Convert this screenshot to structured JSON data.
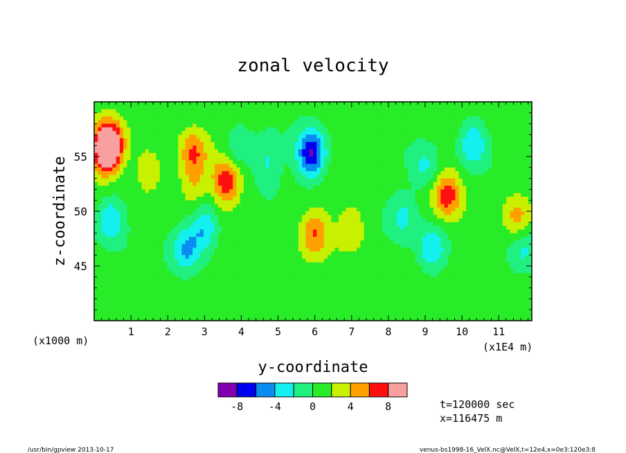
{
  "chart_data": {
    "type": "heatmap",
    "title": "zonal velocity",
    "xlabel": "y-coordinate",
    "ylabel": "z-coordinate",
    "x_unit_label": "(x1000 m)",
    "x_scale_label": "(x1E4 m)",
    "x_ticks": [
      "1",
      "2",
      "3",
      "4",
      "5",
      "6",
      "7",
      "8",
      "9",
      "10",
      "11"
    ],
    "y_ticks": [
      "45",
      "50",
      "55"
    ],
    "xlim": [
      0,
      11.9
    ],
    "ylim": [
      40,
      60
    ],
    "colorbar": {
      "levels": [
        -10,
        -8,
        -6,
        -4,
        -2,
        0,
        2,
        4,
        6,
        8,
        10
      ],
      "colors": [
        "#8000b0",
        "#0000f0",
        "#0a8cf0",
        "#14f0f0",
        "#20f080",
        "#28ec28",
        "#c8f000",
        "#ffa000",
        "#ff1010",
        "#f8a0a0"
      ],
      "tick_labels": [
        "-8",
        "-4",
        "0",
        "4",
        "8"
      ]
    },
    "features": [
      {
        "y": 0.4,
        "z": 56.2,
        "value": 9
      },
      {
        "y": 0.3,
        "z": 55.2,
        "value": 6
      },
      {
        "y": 0.45,
        "z": 49.2,
        "value": -5
      },
      {
        "y": 1.5,
        "z": 53.5,
        "value": 3
      },
      {
        "y": 2.7,
        "z": 52.5,
        "value": 3
      },
      {
        "y": 2.7,
        "z": 55.5,
        "value": 5
      },
      {
        "y": 3.6,
        "z": 52.8,
        "value": 7
      },
      {
        "y": 3.0,
        "z": 48.5,
        "value": -5
      },
      {
        "y": 2.5,
        "z": 46.5,
        "value": -5
      },
      {
        "y": 3.9,
        "z": 55.5,
        "value": -3
      },
      {
        "y": 4.7,
        "z": 54.5,
        "value": -3
      },
      {
        "y": 5.9,
        "z": 55.2,
        "value": -9
      },
      {
        "y": 6.0,
        "z": 48.0,
        "value": 5
      },
      {
        "y": 7.0,
        "z": 48.5,
        "value": 3
      },
      {
        "y": 8.4,
        "z": 49.5,
        "value": -3
      },
      {
        "y": 9.2,
        "z": 46.5,
        "value": -5
      },
      {
        "y": 9.0,
        "z": 54.0,
        "value": -3
      },
      {
        "y": 10.3,
        "z": 56.2,
        "value": -5
      },
      {
        "y": 9.6,
        "z": 51.5,
        "value": 6
      },
      {
        "y": 11.5,
        "z": 49.5,
        "value": 4
      },
      {
        "y": 11.7,
        "z": 46.5,
        "value": -3
      }
    ]
  },
  "info": {
    "time": "t=120000 sec",
    "position": "x=116475 m"
  },
  "footer": {
    "left": "/usr/bin/gpview  2013-10-17",
    "right": "venus-bs1998-16_VelX.nc@VelX,t=12e4,x=0e3:120e3:8"
  }
}
